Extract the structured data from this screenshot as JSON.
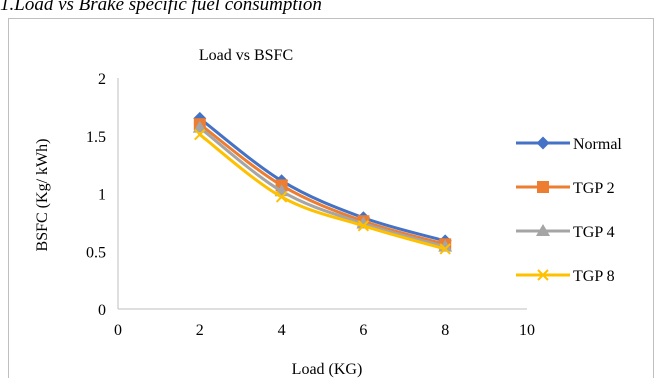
{
  "figure_caption": "1.Load vs Brake specific fuel consumption",
  "chart_data": {
    "type": "scatter",
    "title": "Load vs BSFC",
    "xlabel": "Load (KG)",
    "ylabel": "BSFC (Kg/ kWh)",
    "xlim": [
      0,
      10
    ],
    "ylim": [
      0,
      2
    ],
    "x_ticks": [
      "0",
      "2",
      "4",
      "6",
      "8",
      "10"
    ],
    "y_ticks": [
      "0",
      "0.5",
      "1",
      "1.5",
      "2"
    ],
    "grid": false,
    "legend_position": "right",
    "series": [
      {
        "name": "Normal",
        "color": "#4472C4",
        "marker": "diamond",
        "x": [
          2,
          4,
          6,
          8
        ],
        "y": [
          1.65,
          1.11,
          0.79,
          0.59
        ]
      },
      {
        "name": "TGP 2",
        "color": "#ED7D31",
        "marker": "square",
        "x": [
          2,
          4,
          6,
          8
        ],
        "y": [
          1.6,
          1.07,
          0.76,
          0.56
        ]
      },
      {
        "name": "TGP 4",
        "color": "#A5A5A5",
        "marker": "triangle",
        "x": [
          2,
          4,
          6,
          8
        ],
        "y": [
          1.57,
          1.02,
          0.74,
          0.54
        ]
      },
      {
        "name": "TGP 8",
        "color": "#FFC000",
        "marker": "x",
        "x": [
          2,
          4,
          6,
          8
        ],
        "y": [
          1.51,
          0.97,
          0.72,
          0.52
        ]
      }
    ]
  }
}
